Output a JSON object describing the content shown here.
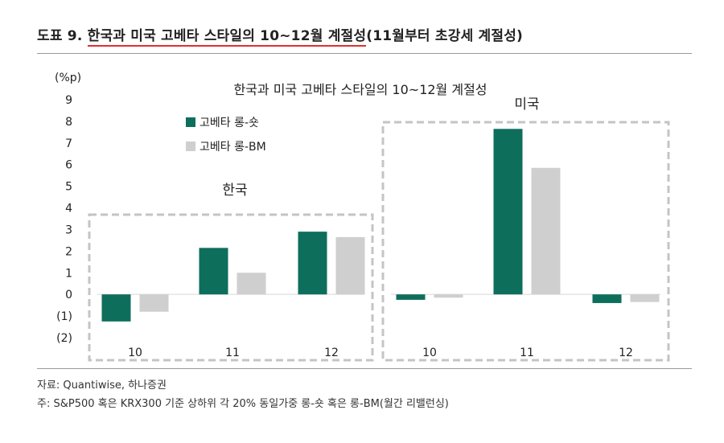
{
  "figure": {
    "number_label": "도표 9.",
    "title_highlight": "한국과 미국 고베타 스타일의 10~12월 계절성",
    "title_rest": "(11월부터 초강세 계절성)"
  },
  "notes": {
    "source": "자료: Quantiwise, 하나증권",
    "footnote": "주: S&P500 혹은 KRX300 기준 상하위 각 20% 동일가중 롱-숏 혹은 롱-BM(월간 리밸런싱)"
  },
  "chart_data": {
    "type": "bar",
    "title": "한국과 미국 고베타 스타일의 10~12월 계절성",
    "ylabel": "(%p)",
    "ylim": [
      -2,
      9
    ],
    "yticks": [
      9,
      8,
      7,
      6,
      5,
      4,
      3,
      2,
      1,
      0,
      -1,
      -2
    ],
    "ytick_labels": [
      "9",
      "8",
      "7",
      "6",
      "5",
      "4",
      "3",
      "2",
      "1",
      "0",
      "(1)",
      "(2)"
    ],
    "groups": [
      {
        "name": "한국",
        "categories": [
          "10",
          "11",
          "12"
        ]
      },
      {
        "name": "미국",
        "categories": [
          "10",
          "11",
          "12"
        ]
      }
    ],
    "series": [
      {
        "name": "고베타 롱-숏",
        "color": "#0e6e5c",
        "values": [
          -1.25,
          2.15,
          2.9,
          -0.25,
          7.65,
          -0.4
        ]
      },
      {
        "name": "고베타 롱-BM",
        "color": "#cfcfcf",
        "values": [
          -0.8,
          1.0,
          2.65,
          -0.15,
          5.85,
          -0.35
        ]
      }
    ],
    "legend_position": "top-left",
    "grid": false
  }
}
